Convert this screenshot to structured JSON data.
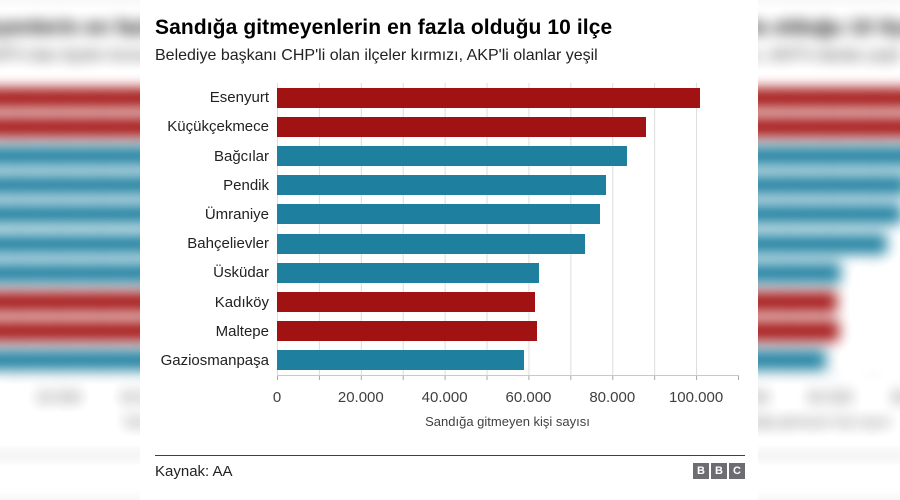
{
  "header": {
    "title": "Sandığa gitmeyenlerin en fazla olduğu 10 ilçe",
    "subtitle": "Belediye başkanı CHP'li olan ilçeler kırmızı, AKP'li olanlar yeşil"
  },
  "chart_data": {
    "type": "bar",
    "orientation": "horizontal",
    "title": "Sandığa gitmeyenlerin en fazla olduğu 10 ilçe",
    "subtitle": "Belediye başkanı CHP'li olan ilçeler kırmızı, AKP'li olanlar yeşil",
    "xlabel": "Sandığa gitmeyen kişi sayısı",
    "ylabel": "",
    "xlim": [
      0,
      110000
    ],
    "gridline_step": 10000,
    "grid": true,
    "categories": [
      "Esenyurt",
      "Küçükçekmece",
      "Bağcılar",
      "Pendik",
      "Ümraniye",
      "Bahçelievler",
      "Üsküdar",
      "Kadıköy",
      "Maltepe",
      "Gaziosmanpaşa"
    ],
    "values": [
      101000,
      88000,
      83500,
      78500,
      77000,
      73500,
      62500,
      61500,
      62000,
      59000
    ],
    "parties": [
      "CHP",
      "CHP",
      "AKP",
      "AKP",
      "AKP",
      "AKP",
      "AKP",
      "CHP",
      "CHP",
      "AKP"
    ],
    "colors": {
      "CHP": "#a11212",
      "AKP": "#1f7f9e"
    },
    "x_ticks": [
      {
        "value": 0,
        "label": "0"
      },
      {
        "value": 20000,
        "label": "20.000"
      },
      {
        "value": 40000,
        "label": "40.000"
      },
      {
        "value": 60000,
        "label": "60.000"
      },
      {
        "value": 80000,
        "label": "80.000"
      },
      {
        "value": 100000,
        "label": "100.000"
      }
    ]
  },
  "footer": {
    "source": "Kaynak: AA",
    "logo": [
      "B",
      "B",
      "C"
    ]
  }
}
